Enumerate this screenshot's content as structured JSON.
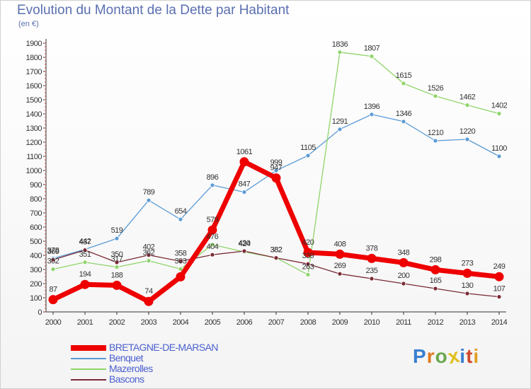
{
  "header": {
    "title": "Evolution du Montant de la Dette par Habitant",
    "subtitle": "(en €)"
  },
  "logo": {
    "text": "Proxiti",
    "letter_colors": [
      "#3a7fd0",
      "#e07a20",
      "#6aa84f",
      "#e0c020",
      "#3a7fd0",
      "#d04a2a",
      "#e0a020"
    ]
  },
  "chart_data": {
    "type": "line",
    "x": [
      "2000",
      "2001",
      "2002",
      "2003",
      "2004",
      "2005",
      "2006",
      "2007",
      "2008",
      "2009",
      "2010",
      "2011",
      "2012",
      "2013",
      "2014"
    ],
    "ylim": [
      0,
      1900
    ],
    "yticks": [
      0,
      100,
      200,
      300,
      400,
      500,
      600,
      700,
      800,
      900,
      1000,
      1100,
      1200,
      1300,
      1400,
      1500,
      1600,
      1700,
      1800,
      1900
    ],
    "grid": false,
    "legend_position": "bottom-left",
    "series": [
      {
        "name": "BRETAGNE-DE-MARSAN",
        "color": "#ee0000",
        "style": "bold",
        "values": [
          87,
          194,
          188,
          74,
          248,
          579,
          1061,
          947,
          420,
          408,
          378,
          348,
          298,
          273,
          249
        ],
        "labels": [
          "87",
          "194",
          "188",
          "74",
          "",
          "579",
          "1061",
          "947",
          "420",
          "408",
          "378",
          "348",
          "298",
          "273",
          "249"
        ]
      },
      {
        "name": "Benquet",
        "color": "#5b9bd5",
        "style": "thin",
        "values": [
          378,
          442,
          519,
          789,
          654,
          896,
          847,
          999,
          1105,
          1291,
          1396,
          1346,
          1210,
          1220,
          1100
        ],
        "labels": [
          "378",
          "442",
          "519",
          "789",
          "654",
          "896",
          "847",
          "999",
          "1105",
          "1291",
          "1396",
          "1346",
          "1210",
          "1220",
          "1100"
        ]
      },
      {
        "name": "Mazerolles",
        "color": "#8fd46a",
        "style": "thin",
        "values": [
          302,
          351,
          317,
          362,
          303,
          476,
          424,
          382,
          263,
          1836,
          1807,
          1615,
          1526,
          1462,
          1402
        ],
        "labels": [
          "302",
          "351",
          "317",
          "362",
          "303",
          "476",
          "424",
          "382",
          "263",
          "1836",
          "1807",
          "1615",
          "1526",
          "1462",
          "1402"
        ]
      },
      {
        "name": "Bascons",
        "color": "#7a2a35",
        "style": "thin",
        "values": [
          369,
          437,
          350,
          402,
          358,
          404,
          430,
          382,
          339,
          269,
          235,
          200,
          165,
          130,
          107
        ],
        "labels": [
          "369",
          "437",
          "350",
          "402",
          "358",
          "404",
          "430",
          "382",
          "339",
          "269",
          "235",
          "200",
          "165",
          "130",
          "107"
        ]
      }
    ]
  }
}
